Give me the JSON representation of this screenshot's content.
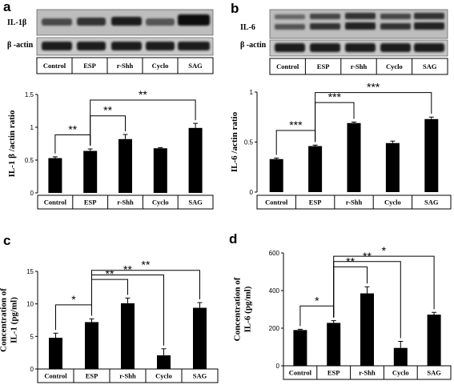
{
  "panels": {
    "a": {
      "letter": "a",
      "protein": "IL-1β",
      "actin": "β -actin"
    },
    "b": {
      "letter": "b",
      "protein": "IL-6",
      "actin": "β -actin"
    },
    "c": {
      "letter": "c"
    },
    "d": {
      "letter": "d"
    }
  },
  "blot_lanes": [
    "Control",
    "ESP",
    "r-Shh",
    "Cyclo",
    "SAG"
  ],
  "chart_data": [
    {
      "id": "a",
      "type": "bar",
      "categories": [
        "Control",
        "ESP",
        "r-Shh",
        "Cyclo",
        "SAG"
      ],
      "values": [
        0.53,
        0.64,
        0.82,
        0.68,
        0.99
      ],
      "errors": [
        0.02,
        0.03,
        0.07,
        0.01,
        0.07
      ],
      "ylabel": "IL-1 β /actin ratio",
      "ylim": [
        0,
        1.5
      ],
      "yticks": [
        0,
        0.5,
        1,
        1.5
      ],
      "ytick_labels": [
        "0",
        "0.5",
        "1",
        "1.5"
      ],
      "significance": [
        {
          "from": 0,
          "to": 1,
          "label": "**"
        },
        {
          "from": 1,
          "to": 2,
          "label": "**"
        },
        {
          "from": 1,
          "to": 4,
          "label": "**"
        }
      ]
    },
    {
      "id": "b",
      "type": "bar",
      "categories": [
        "Control",
        "ESP",
        "r-Shh",
        "Cyclo",
        "SAG"
      ],
      "values": [
        0.33,
        0.46,
        0.69,
        0.49,
        0.73
      ],
      "errors": [
        0.01,
        0.01,
        0.01,
        0.02,
        0.02
      ],
      "ylabel": "IL-6 /actin ratio",
      "ylim": [
        0,
        1.0
      ],
      "yticks": [
        0,
        0.5,
        1
      ],
      "ytick_labels": [
        "0",
        "0.5",
        "1"
      ],
      "significance": [
        {
          "from": 0,
          "to": 1,
          "label": "***"
        },
        {
          "from": 1,
          "to": 2,
          "label": "***"
        },
        {
          "from": 1,
          "to": 4,
          "label": "***"
        }
      ]
    },
    {
      "id": "c",
      "type": "bar",
      "categories": [
        "Control",
        "ESP",
        "r-Shh",
        "Cyclo",
        "SAG"
      ],
      "values": [
        4.8,
        7.2,
        10.1,
        2.1,
        9.4
      ],
      "errors": [
        0.7,
        0.5,
        0.8,
        1.0,
        0.8
      ],
      "ylabel": [
        "Concentration of",
        "IL-1 (pg/ml)"
      ],
      "ylim": [
        0,
        15
      ],
      "yticks": [
        0,
        5,
        10,
        15
      ],
      "ytick_labels": [
        "0",
        "5",
        "10",
        "15"
      ],
      "significance": [
        {
          "from": 0,
          "to": 1,
          "label": "*"
        },
        {
          "from": 1,
          "to": 2,
          "label": "**"
        },
        {
          "from": 1,
          "to": 3,
          "label": "**"
        },
        {
          "from": 1,
          "to": 4,
          "label": "**"
        }
      ]
    },
    {
      "id": "d",
      "type": "bar",
      "categories": [
        "Control",
        "ESP",
        "r-Shh",
        "Cyclo",
        "SAG"
      ],
      "values": [
        190,
        228,
        385,
        95,
        272
      ],
      "errors": [
        4,
        12,
        35,
        35,
        12
      ],
      "ylabel": [
        "Concentration of",
        "IL-6 (pg/ml)"
      ],
      "ylim": [
        0,
        600
      ],
      "yticks": [
        0,
        200,
        400,
        600
      ],
      "ytick_labels": [
        "0",
        "200",
        "400",
        "600"
      ],
      "significance": [
        {
          "from": 0,
          "to": 1,
          "label": "*"
        },
        {
          "from": 1,
          "to": 2,
          "label": "**"
        },
        {
          "from": 1,
          "to": 3,
          "label": "**"
        },
        {
          "from": 1,
          "to": 4,
          "label": "*"
        }
      ]
    }
  ]
}
